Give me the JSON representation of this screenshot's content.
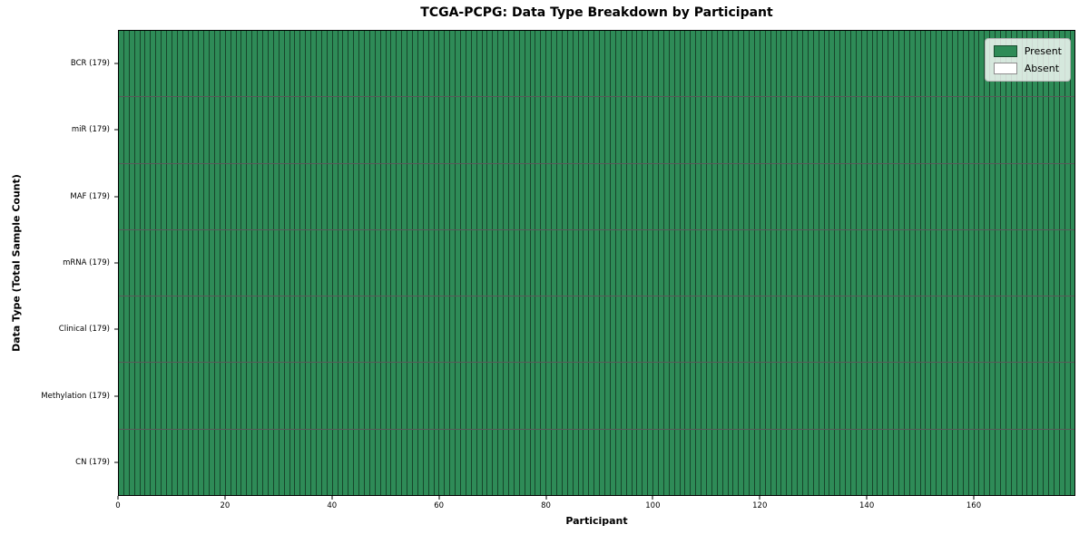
{
  "chart_data": {
    "type": "heatmap",
    "title": "TCGA-PCPG: Data Type Breakdown by Participant",
    "xlabel": "Participant",
    "ylabel": "Data Type (Total Sample Count)",
    "rows": [
      {
        "label": "BCR (179)",
        "present_count": 179,
        "absent_count": 0
      },
      {
        "label": "miR (179)",
        "present_count": 179,
        "absent_count": 0
      },
      {
        "label": "MAF (179)",
        "present_count": 179,
        "absent_count": 0
      },
      {
        "label": "mRNA (179)",
        "present_count": 179,
        "absent_count": 0
      },
      {
        "label": "Clinical (179)",
        "present_count": 179,
        "absent_count": 0
      },
      {
        "label": "Methylation (179)",
        "present_count": 179,
        "absent_count": 0
      },
      {
        "label": "CN (179)",
        "present_count": 179,
        "absent_count": 0
      }
    ],
    "n_participants": 179,
    "xlim": [
      0,
      179
    ],
    "x_ticks": [
      0,
      20,
      40,
      60,
      80,
      100,
      120,
      140,
      160
    ],
    "grid": false,
    "legend": {
      "position": "upper-right",
      "entries": [
        {
          "label": "Present",
          "color": "#2e8b57"
        },
        {
          "label": "Absent",
          "color": "#ffffff"
        }
      ]
    },
    "cell_edge_color": "#000000"
  }
}
